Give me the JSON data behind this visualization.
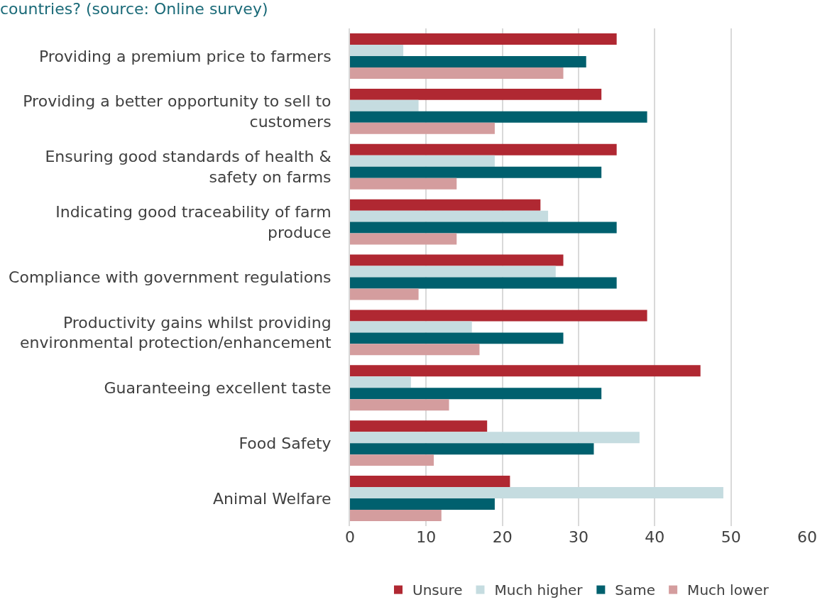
{
  "chart_data": {
    "type": "bar",
    "orientation": "horizontal",
    "title": "countries? (source: Online survey)",
    "categories": [
      "Providing a premium price to farmers",
      "Providing a better opportunity to sell to\ncustomers",
      "Ensuring good standards of health &\nsafety on farms",
      "Indicating good traceability of farm\nproduce",
      "Compliance with government regulations",
      "Productivity gains whilst providing\nenvironmental protection/enhancement",
      "Guaranteeing excellent taste",
      "Food Safety",
      "Animal Welfare"
    ],
    "series": [
      {
        "name": "Unsure",
        "color": "#b02832",
        "values": [
          35,
          33,
          35,
          25,
          28,
          39,
          46,
          18,
          21
        ]
      },
      {
        "name": "Much higher",
        "color": "#c5dce0",
        "values": [
          7,
          9,
          19,
          26,
          27,
          16,
          8,
          38,
          49
        ]
      },
      {
        "name": "Same",
        "color": "#00606e",
        "values": [
          31,
          39,
          33,
          35,
          35,
          28,
          33,
          32,
          19
        ]
      },
      {
        "name": "Much lower",
        "color": "#d49d9e",
        "values": [
          28,
          19,
          14,
          14,
          9,
          17,
          13,
          11,
          12
        ]
      }
    ],
    "xlim": [
      0,
      60
    ],
    "xticks": [
      0,
      10,
      20,
      30,
      40,
      50,
      60
    ],
    "grid": "x",
    "legend": "bottom"
  }
}
